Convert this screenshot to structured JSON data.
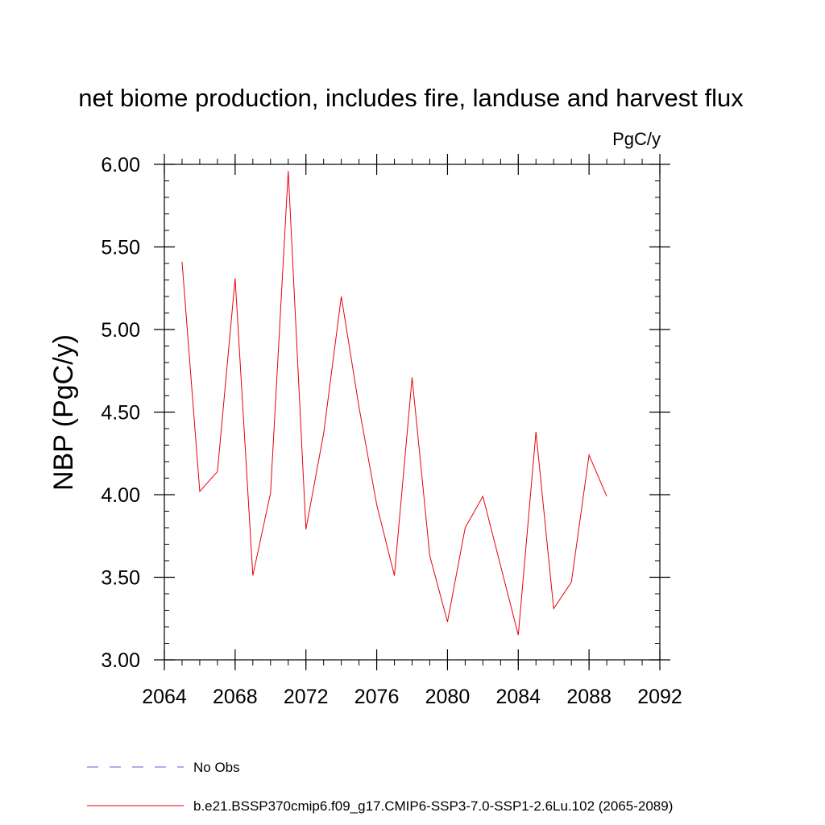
{
  "chart_data": {
    "type": "line",
    "title": "net biome production, includes fire, landuse and harvest flux",
    "units": "PgC/y",
    "ylabel": "NBP  (PgC/y)",
    "xlabel": "",
    "xlim": [
      2064,
      2092
    ],
    "ylim": [
      3.0,
      6.0
    ],
    "x_ticks": [
      2064,
      2068,
      2072,
      2076,
      2080,
      2084,
      2088,
      2092
    ],
    "y_ticks": [
      "3.00",
      "3.50",
      "4.00",
      "4.50",
      "5.00",
      "5.50",
      "6.00"
    ],
    "series": [
      {
        "name": "b.e21.BSSP370cmip6.f09_g17.CMIP6-SSP3-7.0-SSP1-2.6Lu.102 (2065-2089)",
        "color": "#e8000b",
        "style": "solid",
        "x": [
          2065,
          2066,
          2067,
          2068,
          2069,
          2070,
          2071,
          2072,
          2073,
          2074,
          2075,
          2076,
          2077,
          2078,
          2079,
          2080,
          2081,
          2082,
          2083,
          2084,
          2085,
          2086,
          2087,
          2088,
          2089
        ],
        "y": [
          5.41,
          4.02,
          4.14,
          5.31,
          3.51,
          4.01,
          5.96,
          3.79,
          4.37,
          5.2,
          4.53,
          3.94,
          3.51,
          4.71,
          3.63,
          3.23,
          3.8,
          3.99,
          3.57,
          3.15,
          4.38,
          3.31,
          3.47,
          4.24,
          3.99
        ]
      }
    ],
    "legend": {
      "placement": "bottom",
      "entries": [
        {
          "label": "No Obs",
          "color": "#6a5acd",
          "style": "dashed"
        },
        {
          "label": "b.e21.BSSP370cmip6.f09_g17.CMIP6-SSP3-7.0-SSP1-2.6Lu.102 (2065-2089)",
          "color": "#e8000b",
          "style": "solid"
        }
      ]
    },
    "grid": false
  }
}
